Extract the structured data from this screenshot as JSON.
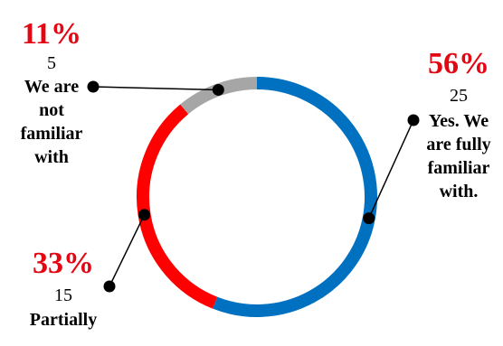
{
  "chart_data": {
    "type": "pie",
    "subtype": "donut",
    "title": "",
    "slices": [
      {
        "label_lines": [
          "Yes. We",
          "are fully",
          "familiar",
          "with."
        ],
        "count": "25",
        "percent": 56,
        "percent_label": "56%",
        "color": "#0070C0"
      },
      {
        "label_lines": [
          "Partially"
        ],
        "count": "15",
        "percent": 33,
        "percent_label": "33%",
        "color": "#FF0000"
      },
      {
        "label_lines": [
          "We are",
          "not",
          "familiar",
          "with"
        ],
        "count": "5",
        "percent": 11,
        "percent_label": "11%",
        "color": "#A6A6A6"
      }
    ],
    "percent_color": "#E30613",
    "label_color": "#000000"
  }
}
